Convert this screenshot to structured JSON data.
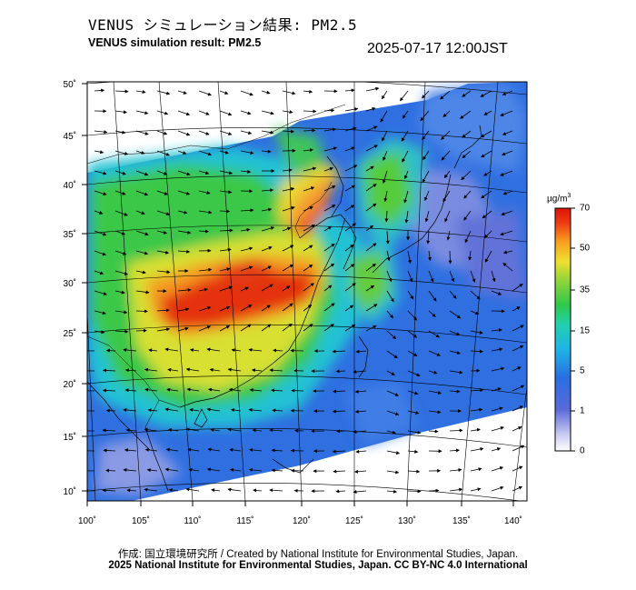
{
  "header": {
    "title_jp": "VENUS シミュレーション結果: PM2.5",
    "title_en": "VENUS simulation result: PM2.5",
    "timestamp": "2025-07-17 12:00JST"
  },
  "map": {
    "lat_ticks": [
      "50˚",
      "45˚",
      "40˚",
      "35˚",
      "30˚",
      "25˚",
      "20˚",
      "15˚",
      "10˚"
    ],
    "lon_ticks": [
      "100˚",
      "105˚",
      "110˚",
      "115˚",
      "120˚",
      "125˚",
      "130˚",
      "135˚",
      "140˚"
    ]
  },
  "colorbar": {
    "unit_prefix": "µg/m",
    "unit_sup": "3",
    "labels": [
      "70",
      "50",
      "35",
      "15",
      "5",
      "1",
      "0"
    ]
  },
  "credits": {
    "line1": "作成: 国立環境研究所 / Created by National Institute for Environmental Studies, Japan.",
    "line2": "2025 National Institute for Environmental Studies, Japan. CC BY-NC 4.0 International"
  }
}
